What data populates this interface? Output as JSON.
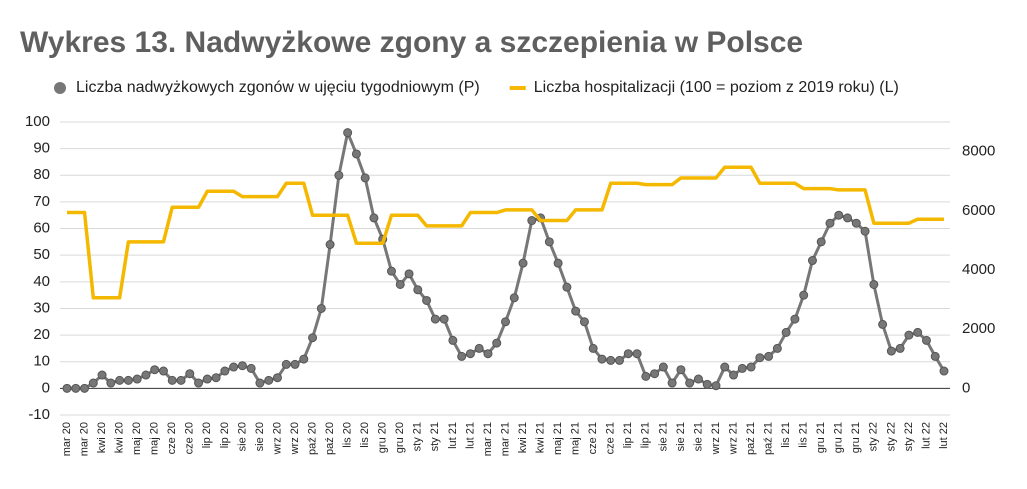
{
  "chart_data": {
    "type": "line",
    "title": "Wykres 13. Nadwyżkowe zgony a szczepienia w Polsce",
    "categories": [
      "mar 20",
      null,
      "mar 20",
      null,
      "kwi 20",
      null,
      "kwi 20",
      null,
      "maj 20",
      null,
      "maj 20",
      null,
      "cze 20",
      null,
      "cze 20",
      null,
      "lip 20",
      null,
      "lip 20",
      null,
      "sie 20",
      null,
      "sie 20",
      null,
      "wrz 20",
      null,
      "wrz 20",
      null,
      "paź 20",
      null,
      "paź 20",
      null,
      "lis 20",
      null,
      "lis 20",
      null,
      "gru 20",
      null,
      "gru 20",
      null,
      "sty 21",
      null,
      "sty 21",
      null,
      "lut 21",
      null,
      "lut 21",
      null,
      "mar 21",
      null,
      "mar 21",
      null,
      "kwi 21",
      null,
      "kwi 21",
      null,
      "maj 21",
      null,
      "maj 21",
      null,
      "cze 21",
      null,
      "cze 21",
      null,
      "lip 21",
      null,
      "lip 21",
      null,
      "sie 21",
      null,
      "sie 21",
      null,
      "sie 21",
      null,
      "wrz 21",
      null,
      "wrz 21",
      null,
      "paź 21",
      null,
      "paź 21",
      null,
      "lis 21",
      null,
      "lis 21",
      null,
      "gru 21",
      null,
      "gru 21",
      null,
      "gru 21",
      null,
      "sty 22",
      null,
      "sty 22",
      null,
      "sty 22",
      null,
      "lut 22",
      null,
      "lut 22"
    ],
    "series": [
      {
        "name": "Liczba nadwyżkowych zgonów w ujęciu tygodniowym (P)",
        "color": "#777777",
        "axis": "y2",
        "markers": true,
        "values": [
          0,
          0,
          0,
          180,
          450,
          180,
          270,
          270,
          315,
          450,
          630,
          585,
          270,
          270,
          495,
          180,
          315,
          360,
          585,
          720,
          765,
          675,
          180,
          270,
          360,
          810,
          810,
          990,
          1710,
          2700,
          4860,
          7200,
          8640,
          7920,
          7110,
          5760,
          5040,
          3960,
          3510,
          3870,
          3330,
          2970,
          2340,
          2340,
          1620,
          1080,
          1170,
          1350,
          1170,
          1530,
          2250,
          3060,
          4230,
          5670,
          5760,
          4950,
          4230,
          3420,
          2610,
          2250,
          1350,
          990,
          945,
          945,
          1170,
          1170,
          405,
          495,
          720,
          180,
          630,
          180,
          315,
          135,
          90,
          720,
          450,
          675,
          720,
          1035,
          1080,
          1350,
          1890,
          2340,
          3150,
          4320,
          4950,
          5580,
          5850,
          5760,
          5580,
          5310,
          3510,
          2160,
          1260,
          1350,
          1800,
          1890,
          1620,
          1080,
          585
        ]
      },
      {
        "name": "Liczba hospitalizacji (100 = poziom z 2019 roku) (L)",
        "color": "#f5b800",
        "axis": "y",
        "markers": false,
        "values": [
          66,
          66,
          66,
          34,
          34,
          34,
          34,
          55,
          55,
          55,
          55,
          55,
          68,
          68,
          68,
          68,
          74,
          74,
          74,
          74,
          72,
          72,
          72,
          72,
          72,
          77,
          77,
          77,
          65,
          65,
          65,
          65,
          65,
          54.5,
          54.5,
          54.5,
          54.5,
          65,
          65,
          65,
          65,
          61,
          61,
          61,
          61,
          61,
          66,
          66,
          66,
          66,
          67,
          67,
          67,
          67,
          63,
          63,
          63,
          63,
          67,
          67,
          67,
          67,
          77,
          77,
          77,
          77,
          76.5,
          76.5,
          76.5,
          76.5,
          79,
          79,
          79,
          79,
          79,
          83,
          83,
          83,
          83,
          77,
          77,
          77,
          77,
          77,
          75,
          75,
          75,
          75,
          74.5,
          74.5,
          74.5,
          74.5,
          62,
          62,
          62,
          62,
          62,
          63.5,
          63.5,
          63.5,
          63.5
        ]
      }
    ],
    "ylim": [
      -10,
      100
    ],
    "yticks": [
      -10,
      0,
      10,
      20,
      30,
      40,
      50,
      60,
      70,
      80,
      90,
      100
    ],
    "y2lim": [
      -900,
      9000
    ],
    "y2ticks": [
      0,
      2000,
      4000,
      6000,
      8000
    ],
    "grid": true
  }
}
